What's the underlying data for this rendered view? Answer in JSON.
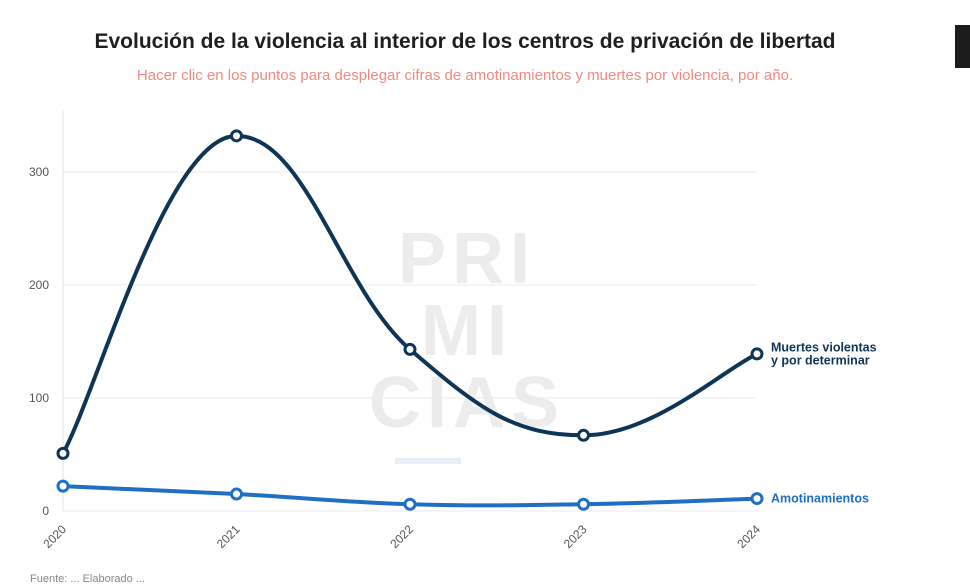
{
  "title": "Evolución de la violencia al interior de los centros de privación de libertad",
  "subtitle": "Hacer clic en los puntos para desplegar cifras de amotinamientos y muertes por violencia, por año.",
  "source": "Fuente: ... Elaborado ...",
  "watermark": [
    "PRI",
    "MI",
    "CIAS"
  ],
  "chart_data": {
    "type": "line",
    "x": [
      "2020",
      "2021",
      "2022",
      "2023",
      "2024"
    ],
    "ylim": [
      0,
      350
    ],
    "yticks": [
      0,
      100,
      200,
      300
    ],
    "grid": true,
    "series": [
      {
        "name_lines": [
          "Muertes violentas",
          "y por determinar"
        ],
        "color": "#0f3556",
        "values": [
          51,
          332,
          143,
          67,
          139
        ]
      },
      {
        "name_lines": [
          "Amotinamientos"
        ],
        "color": "#1f6fc4",
        "values": [
          22,
          15,
          6,
          6,
          11
        ]
      }
    ]
  }
}
